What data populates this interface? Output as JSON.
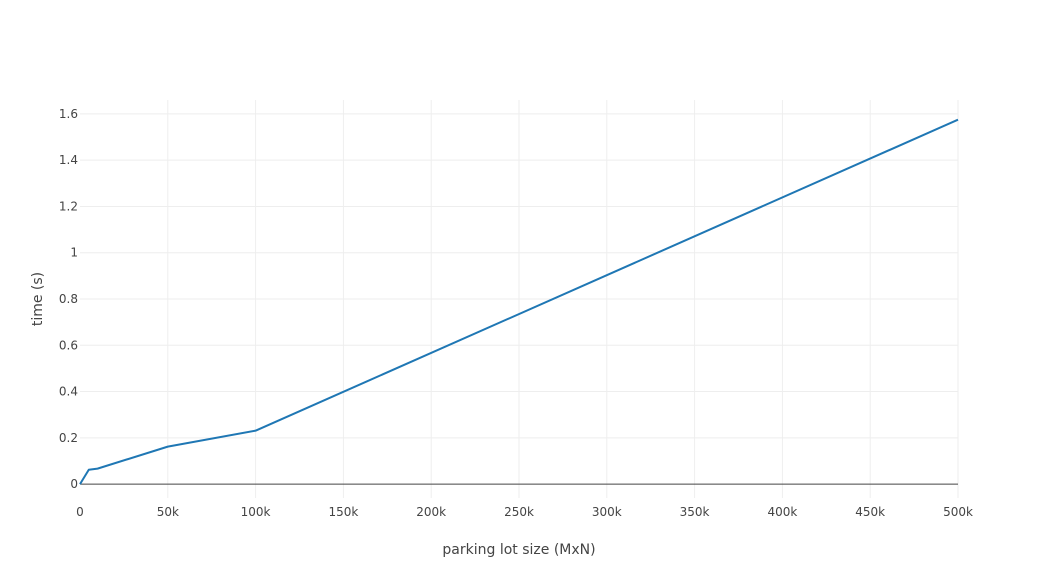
{
  "chart_data": {
    "type": "line",
    "title": "",
    "xlabel": "parking lot size (MxN)",
    "ylabel": "time (s)",
    "xlim": [
      0,
      500000
    ],
    "ylim": [
      -0.06,
      1.66
    ],
    "grid": true,
    "legend": "none",
    "x_ticks": [
      {
        "value": 0,
        "label": "0"
      },
      {
        "value": 50000,
        "label": "50k"
      },
      {
        "value": 100000,
        "label": "100k"
      },
      {
        "value": 150000,
        "label": "150k"
      },
      {
        "value": 200000,
        "label": "200k"
      },
      {
        "value": 250000,
        "label": "250k"
      },
      {
        "value": 300000,
        "label": "300k"
      },
      {
        "value": 350000,
        "label": "350k"
      },
      {
        "value": 400000,
        "label": "400k"
      },
      {
        "value": 450000,
        "label": "450k"
      },
      {
        "value": 500000,
        "label": "500k"
      }
    ],
    "y_ticks": [
      {
        "value": 0,
        "label": "0"
      },
      {
        "value": 0.2,
        "label": "0.2"
      },
      {
        "value": 0.4,
        "label": "0.4"
      },
      {
        "value": 0.6,
        "label": "0.6"
      },
      {
        "value": 0.8,
        "label": "0.8"
      },
      {
        "value": 1.0,
        "label": "1"
      },
      {
        "value": 1.2,
        "label": "1.2"
      },
      {
        "value": 1.4,
        "label": "1.4"
      },
      {
        "value": 1.6,
        "label": "1.6"
      }
    ],
    "series": [
      {
        "color": "#1f77b4",
        "x": [
          0,
          5000,
          10000,
          50000,
          100000,
          500000
        ],
        "y": [
          0,
          0.062,
          0.067,
          0.162,
          0.231,
          1.575
        ]
      }
    ]
  }
}
